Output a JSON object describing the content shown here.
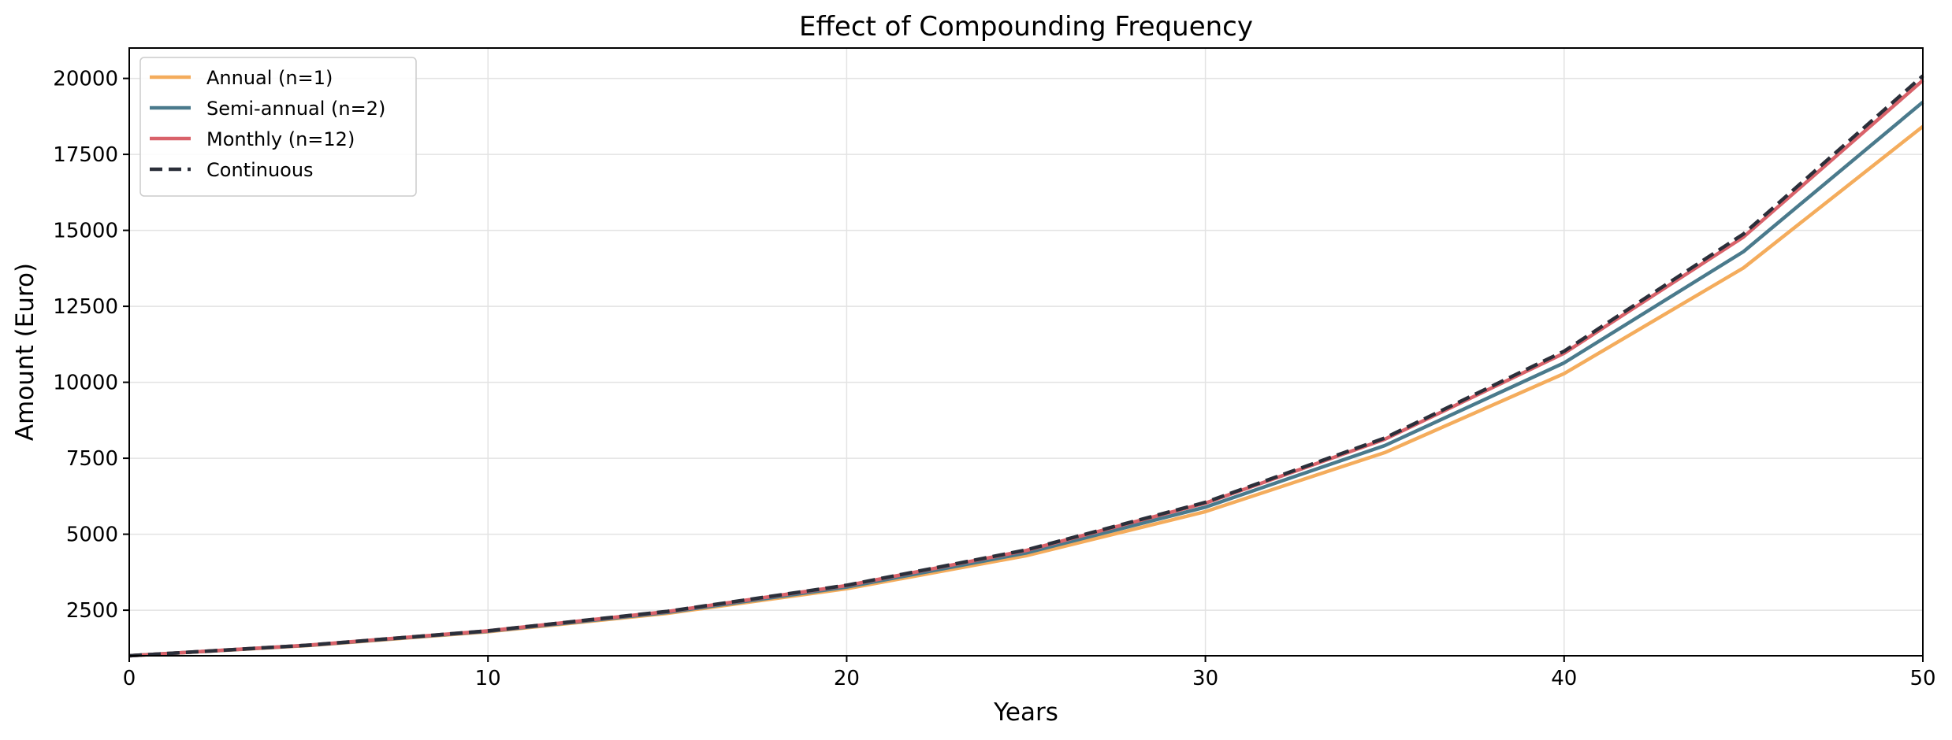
{
  "chart_data": {
    "type": "line",
    "title": "Effect of Compounding Frequency",
    "xlabel": "Years",
    "ylabel": "Amount (Euro)",
    "xlim": [
      0,
      50
    ],
    "ylim": [
      1000,
      21000
    ],
    "xticks": [
      0,
      10,
      20,
      30,
      40,
      50
    ],
    "yticks": [
      2500,
      5000,
      7500,
      10000,
      12500,
      15000,
      17500,
      20000
    ],
    "grid": true,
    "legend_position": "top-left",
    "principal": 1000,
    "rate": 0.06,
    "series": [
      {
        "name": "Annual (n=1)",
        "color": "#f4ac5c",
        "style": "solid",
        "x": [
          0,
          5,
          10,
          15,
          20,
          25,
          30,
          35,
          40,
          45,
          50
        ],
        "values": [
          1000,
          1338,
          1791,
          2397,
          3207,
          4292,
          5743,
          7686,
          10286,
          13765,
          18420
        ]
      },
      {
        "name": "Semi-annual (n=2)",
        "color": "#4a7a8c",
        "style": "solid",
        "x": [
          0,
          5,
          10,
          15,
          20,
          25,
          30,
          35,
          40,
          45,
          50
        ],
        "values": [
          1000,
          1344,
          1806,
          2427,
          3262,
          4384,
          5892,
          7918,
          10641,
          14300,
          19219
        ]
      },
      {
        "name": "Monthly (n=12)",
        "color": "#d9626a",
        "style": "solid",
        "x": [
          0,
          5,
          10,
          15,
          20,
          25,
          30,
          35,
          40,
          45,
          50
        ],
        "values": [
          1000,
          1349,
          1819,
          2454,
          3310,
          4465,
          6023,
          8124,
          10957,
          14779,
          19935
        ]
      },
      {
        "name": "Continuous",
        "color": "#2b2f3a",
        "style": "dashed",
        "x": [
          0,
          5,
          10,
          15,
          20,
          25,
          30,
          35,
          40,
          45,
          50
        ],
        "values": [
          1000,
          1350,
          1822,
          2460,
          3320,
          4482,
          6050,
          8166,
          11023,
          14880,
          20086
        ]
      }
    ]
  }
}
